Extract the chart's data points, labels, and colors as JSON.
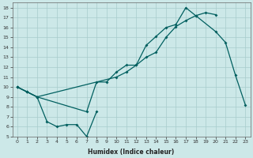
{
  "line1_x": [
    0,
    1,
    2,
    7,
    8,
    9,
    10,
    11,
    12,
    13,
    14,
    15,
    16,
    17,
    18,
    20,
    21,
    22,
    23
  ],
  "line1_y": [
    10,
    9.5,
    9.0,
    7.5,
    10.5,
    10.5,
    11.5,
    12.2,
    12.2,
    14.2,
    15.1,
    16.0,
    16.3,
    18.0,
    17.2,
    15.6,
    14.5,
    11.2,
    8.2
  ],
  "line2_x": [
    0,
    1,
    2,
    10,
    11,
    12,
    13,
    14,
    15,
    16,
    17,
    18,
    19,
    20
  ],
  "line2_y": [
    10,
    9.5,
    9.0,
    11.0,
    11.5,
    12.2,
    13.0,
    13.5,
    15.0,
    16.1,
    16.7,
    17.2,
    17.5,
    17.3
  ],
  "line3_x": [
    0,
    1,
    2,
    3,
    4,
    5,
    6,
    7,
    8
  ],
  "line3_y": [
    10,
    9.5,
    9.0,
    6.5,
    6.0,
    6.2,
    6.2,
    5.0,
    7.5
  ],
  "bg_color": "#cce8e8",
  "line_color": "#005f5f",
  "grid_color": "#a8cccc",
  "xlim": [
    -0.5,
    23.5
  ],
  "ylim": [
    5,
    18.5
  ],
  "yticks": [
    5,
    6,
    7,
    8,
    9,
    10,
    11,
    12,
    13,
    14,
    15,
    16,
    17,
    18
  ],
  "xticks": [
    0,
    1,
    2,
    3,
    4,
    5,
    6,
    7,
    8,
    9,
    10,
    11,
    12,
    13,
    14,
    15,
    16,
    17,
    18,
    19,
    20,
    21,
    22,
    23
  ],
  "xlabel": "Humidex (Indice chaleur)",
  "tick_fontsize": 4.5,
  "xlabel_fontsize": 5.5
}
